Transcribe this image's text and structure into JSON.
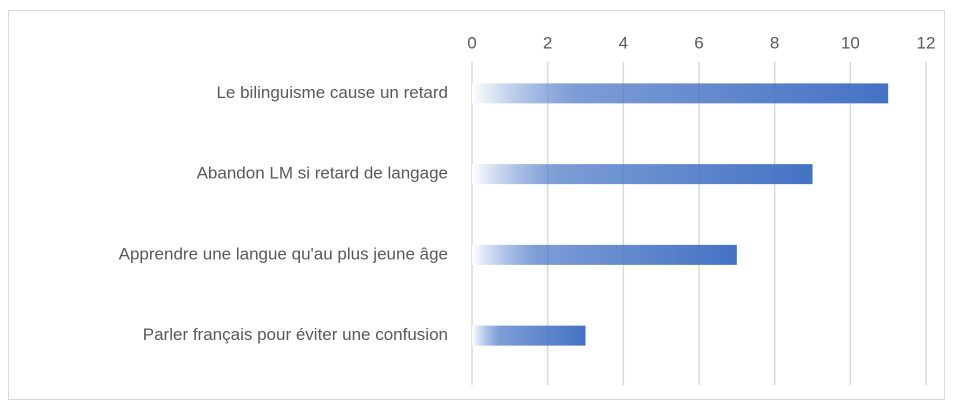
{
  "chart_data": {
    "type": "bar",
    "orientation": "horizontal",
    "categories": [
      "Le bilinguisme cause un retard",
      "Abandon LM si retard de langage",
      "Apprendre une langue qu'au plus jeune âge",
      "Parler français pour éviter une confusion"
    ],
    "values": [
      11,
      9,
      7,
      3
    ],
    "color": "#4472c4",
    "xlim": [
      0,
      12
    ],
    "xticks": [
      0,
      2,
      4,
      6,
      8,
      10,
      12
    ],
    "grid": true
  }
}
